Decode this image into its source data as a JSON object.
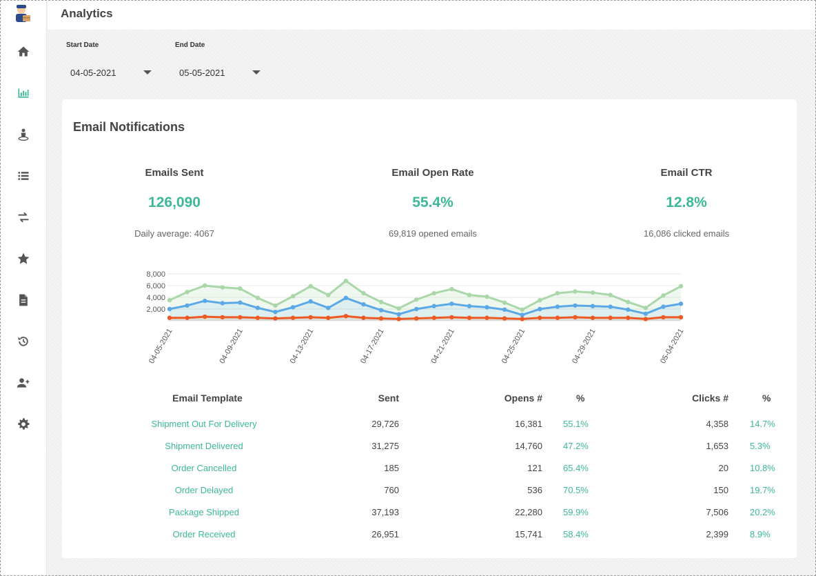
{
  "header": {
    "title": "Analytics"
  },
  "sidebar": {
    "items": [
      {
        "name": "home",
        "icon": "home-icon",
        "active": false
      },
      {
        "name": "analytics",
        "icon": "bar-chart-icon",
        "active": true
      },
      {
        "name": "user-location",
        "icon": "user-pin-icon",
        "active": false
      },
      {
        "name": "list",
        "icon": "list-icon",
        "active": false
      },
      {
        "name": "transfers",
        "icon": "swap-icon",
        "active": false
      },
      {
        "name": "favorites",
        "icon": "star-icon",
        "active": false
      },
      {
        "name": "documents",
        "icon": "document-icon",
        "active": false
      },
      {
        "name": "history",
        "icon": "history-icon",
        "active": false
      },
      {
        "name": "add-user",
        "icon": "add-user-icon",
        "active": false
      },
      {
        "name": "settings",
        "icon": "gear-icon",
        "active": false
      }
    ]
  },
  "filters": {
    "start_label": "Start Date",
    "start_value": "04-05-2021",
    "end_label": "End Date",
    "end_value": "05-05-2021"
  },
  "card": {
    "title": "Email Notifications",
    "kpis": [
      {
        "label": "Emails Sent",
        "value": "126,090",
        "sub": "Daily average: 4067"
      },
      {
        "label": "Email Open Rate",
        "value": "55.4%",
        "sub": "69,819 opened emails"
      },
      {
        "label": "Email CTR",
        "value": "12.8%",
        "sub": "16,086 clicked emails"
      }
    ]
  },
  "colors": {
    "accent": "#3cb898",
    "sent": "#a9d7a8",
    "opens": "#5aa9e6",
    "clicks": "#ee5a24",
    "active_icon": "#3cb898",
    "icon": "#555555"
  },
  "chart_data": {
    "type": "line",
    "x": [
      "04-05-2021",
      "04-06-2021",
      "04-07-2021",
      "04-08-2021",
      "04-09-2021",
      "04-10-2021",
      "04-11-2021",
      "04-12-2021",
      "04-13-2021",
      "04-14-2021",
      "04-15-2021",
      "04-16-2021",
      "04-17-2021",
      "04-18-2021",
      "04-19-2021",
      "04-20-2021",
      "04-21-2021",
      "04-22-2021",
      "04-23-2021",
      "04-24-2021",
      "04-25-2021",
      "04-26-2021",
      "04-27-2021",
      "04-28-2021",
      "04-29-2021",
      "04-30-2021",
      "05-01-2021",
      "05-02-2021",
      "05-03-2021",
      "05-04-2021"
    ],
    "x_ticks": [
      "04-05-2021",
      "04-09-2021",
      "04-13-2021",
      "04-17-2021",
      "04-21-2021",
      "04-25-2021",
      "04-29-2021",
      "05-04-2021"
    ],
    "y_ticks": [
      "2,000",
      "4,000",
      "6,000",
      "8,000"
    ],
    "ylim": [
      0,
      8000
    ],
    "grid": true,
    "series": [
      {
        "values": [
          3500,
          4900,
          6000,
          5700,
          5500,
          3900,
          2600,
          4200,
          5900,
          4400,
          6800,
          4700,
          3200,
          2100,
          3600,
          4700,
          5400,
          4400,
          4100,
          3100,
          1900,
          3500,
          4700,
          5000,
          4800,
          4400,
          3200,
          2200,
          4300,
          5900
        ]
      },
      {
        "values": [
          2000,
          2600,
          3400,
          3000,
          3100,
          2200,
          1500,
          2300,
          3300,
          2200,
          3900,
          2800,
          1800,
          1100,
          2000,
          2500,
          2900,
          2500,
          2300,
          1900,
          1000,
          2000,
          2400,
          2600,
          2500,
          2400,
          1900,
          1200,
          2400,
          2900
        ]
      },
      {
        "values": [
          500,
          500,
          700,
          600,
          600,
          500,
          400,
          500,
          600,
          500,
          800,
          500,
          400,
          300,
          400,
          500,
          600,
          500,
          500,
          400,
          300,
          500,
          500,
          600,
          500,
          500,
          500,
          300,
          600,
          600
        ]
      }
    ]
  },
  "table": {
    "headers": {
      "template": "Email Template",
      "sent": "Sent",
      "opens": "Opens #",
      "open_pct": "%",
      "clicks": "Clicks #",
      "click_pct": "%"
    },
    "rows": [
      {
        "template": "Shipment Out For Delivery",
        "sent": "29,726",
        "opens": "16,381",
        "open_pct": "55.1%",
        "clicks": "4,358",
        "click_pct": "14.7%"
      },
      {
        "template": "Shipment Delivered",
        "sent": "31,275",
        "opens": "14,760",
        "open_pct": "47.2%",
        "clicks": "1,653",
        "click_pct": "5.3%"
      },
      {
        "template": "Order Cancelled",
        "sent": "185",
        "opens": "121",
        "open_pct": "65.4%",
        "clicks": "20",
        "click_pct": "10.8%"
      },
      {
        "template": "Order Delayed",
        "sent": "760",
        "opens": "536",
        "open_pct": "70.5%",
        "clicks": "150",
        "click_pct": "19.7%"
      },
      {
        "template": "Package Shipped",
        "sent": "37,193",
        "opens": "22,280",
        "open_pct": "59.9%",
        "clicks": "7,506",
        "click_pct": "20.2%"
      },
      {
        "template": "Order Received",
        "sent": "26,951",
        "opens": "15,741",
        "open_pct": "58.4%",
        "clicks": "2,399",
        "click_pct": "8.9%"
      }
    ]
  }
}
